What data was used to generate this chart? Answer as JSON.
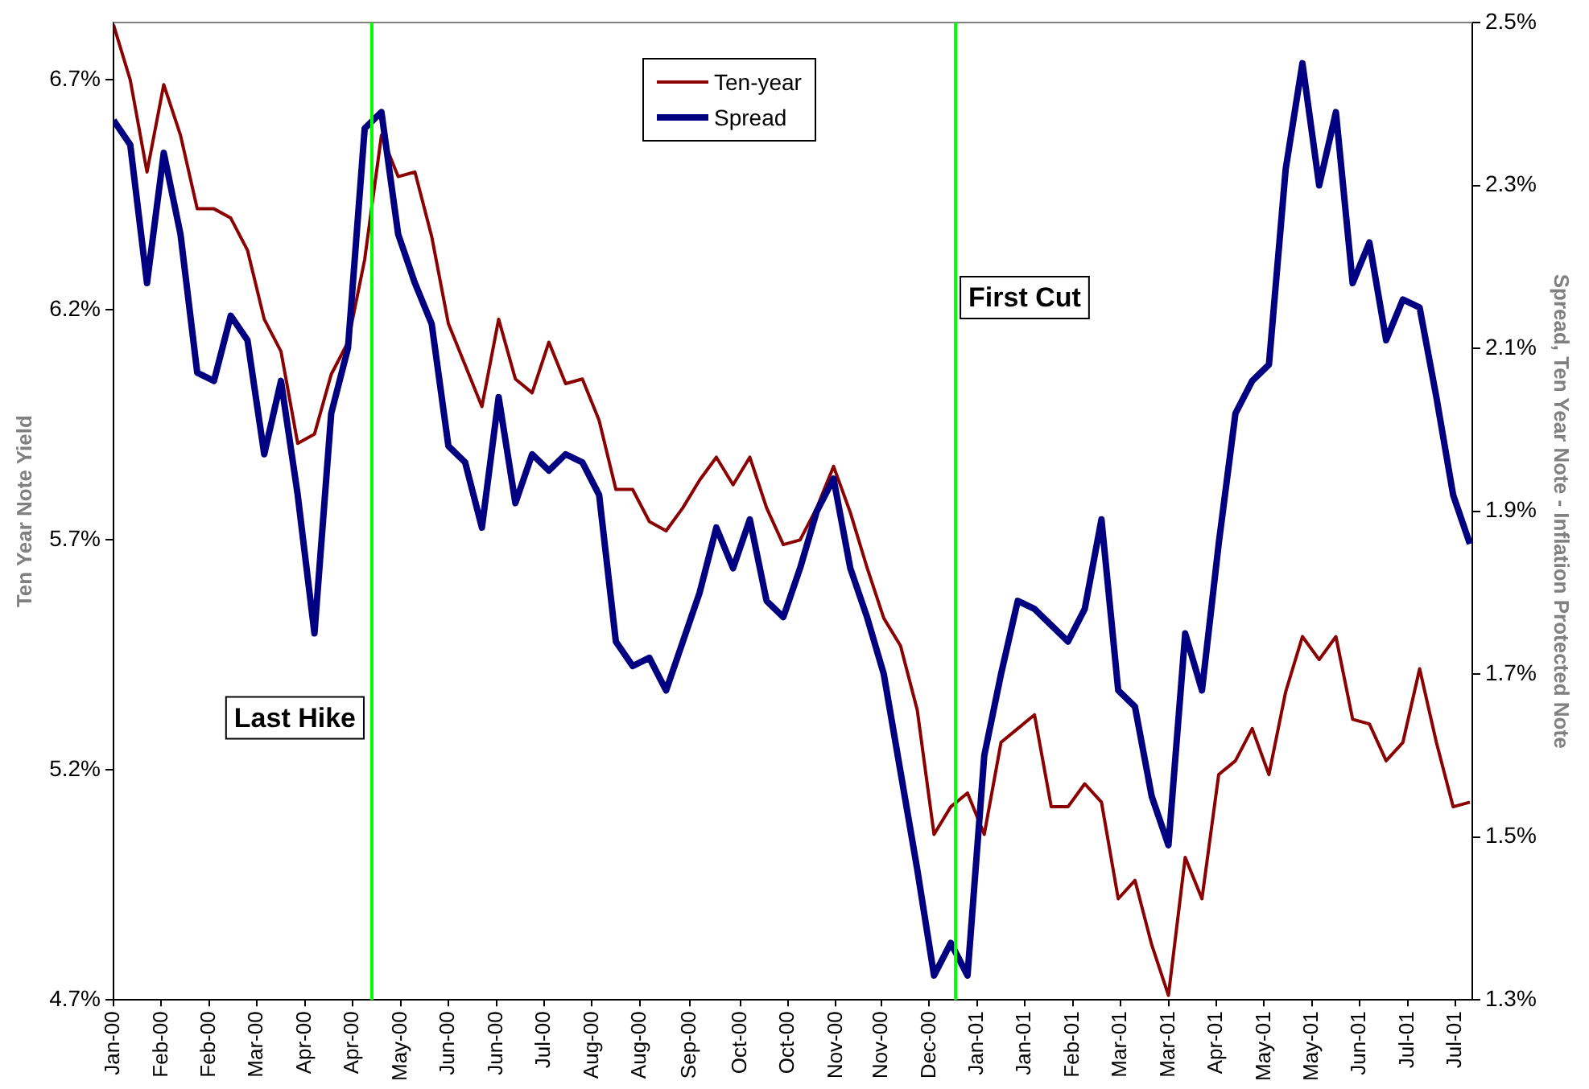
{
  "chart_data": {
    "type": "line",
    "ylabel": "Ten Year Note Yield",
    "y2label": "Spread, Ten Year Note - Inflation Protected Note",
    "x": [
      "2000-01-14",
      "2000-01-21",
      "2000-01-28",
      "2000-02-04",
      "2000-02-11",
      "2000-02-18",
      "2000-02-25",
      "2000-03-03",
      "2000-03-10",
      "2000-03-17",
      "2000-03-24",
      "2000-03-31",
      "2000-04-07",
      "2000-04-14",
      "2000-04-21",
      "2000-04-28",
      "2000-05-05",
      "2000-05-12",
      "2000-05-19",
      "2000-05-26",
      "2000-06-02",
      "2000-06-09",
      "2000-06-16",
      "2000-06-23",
      "2000-06-30",
      "2000-07-07",
      "2000-07-14",
      "2000-07-21",
      "2000-07-28",
      "2000-08-04",
      "2000-08-11",
      "2000-08-18",
      "2000-08-25",
      "2000-09-01",
      "2000-09-08",
      "2000-09-15",
      "2000-09-22",
      "2000-09-29",
      "2000-10-06",
      "2000-10-13",
      "2000-10-20",
      "2000-10-27",
      "2000-11-03",
      "2000-11-10",
      "2000-11-17",
      "2000-11-24",
      "2000-12-01",
      "2000-12-08",
      "2000-12-15",
      "2000-12-22",
      "2000-12-29",
      "2001-01-05",
      "2001-01-12",
      "2001-01-19",
      "2001-01-26",
      "2001-02-02",
      "2001-02-09",
      "2001-02-16",
      "2001-02-23",
      "2001-03-02",
      "2001-03-09",
      "2001-03-16",
      "2001-03-23",
      "2001-03-30",
      "2001-04-06",
      "2001-04-13",
      "2001-04-20",
      "2001-04-27",
      "2001-05-04",
      "2001-05-11",
      "2001-05-18",
      "2001-05-25",
      "2001-06-01",
      "2001-06-08",
      "2001-06-15",
      "2001-06-22",
      "2001-06-29",
      "2001-07-06",
      "2001-07-13",
      "2001-07-20",
      "2001-07-27",
      "2001-08-03"
    ],
    "series": [
      {
        "name": "Ten-year",
        "color": "#8b0000",
        "values": [
          6.82,
          6.7,
          6.5,
          6.69,
          6.58,
          6.42,
          6.42,
          6.4,
          6.33,
          6.18,
          6.11,
          5.91,
          5.93,
          6.06,
          6.13,
          6.31,
          6.58,
          6.49,
          6.5,
          6.36,
          6.17,
          6.08,
          5.99,
          6.18,
          6.05,
          6.02,
          6.13,
          6.04,
          6.05,
          5.96,
          5.81,
          5.81,
          5.74,
          5.72,
          5.77,
          5.83,
          5.88,
          5.82,
          5.88,
          5.77,
          5.69,
          5.7,
          5.77,
          5.86,
          5.76,
          5.64,
          5.53,
          5.47,
          5.33,
          5.06,
          5.12,
          5.15,
          5.06,
          5.26,
          5.29,
          5.32,
          5.12,
          5.12,
          5.17,
          5.13,
          4.92,
          4.96,
          4.82,
          4.71,
          5.01,
          4.92,
          5.19,
          5.22,
          5.29,
          5.19,
          5.37,
          5.49,
          5.44,
          5.49,
          5.31,
          5.3,
          5.22,
          5.26,
          5.42,
          5.26,
          5.12,
          5.13
        ]
      },
      {
        "name": "Spread",
        "color": "#000080",
        "axis": "y2",
        "values": [
          2.38,
          2.35,
          2.18,
          2.34,
          2.24,
          2.07,
          2.06,
          2.14,
          2.11,
          1.97,
          2.06,
          1.92,
          1.75,
          2.02,
          2.1,
          2.37,
          2.39,
          2.24,
          2.18,
          2.13,
          1.98,
          1.96,
          1.88,
          2.04,
          1.91,
          1.97,
          1.95,
          1.97,
          1.96,
          1.92,
          1.74,
          1.71,
          1.72,
          1.68,
          1.74,
          1.8,
          1.88,
          1.83,
          1.89,
          1.79,
          1.77,
          1.83,
          1.9,
          1.94,
          1.83,
          1.77,
          1.7,
          1.58,
          1.46,
          1.33,
          1.37,
          1.33,
          1.6,
          1.7,
          1.79,
          1.78,
          1.76,
          1.74,
          1.78,
          1.89,
          1.68,
          1.66,
          1.55,
          1.49,
          1.75,
          1.68,
          1.86,
          2.02,
          2.06,
          2.08,
          2.32,
          2.45,
          2.3,
          2.39,
          2.18,
          2.23,
          2.11,
          2.16,
          2.15,
          2.04,
          1.92,
          1.86
        ]
      }
    ],
    "xlim": [
      "2000-01-14",
      "2001-08-04"
    ],
    "xticks": [
      {
        "value": "2000-01-14",
        "label": "Jan-00"
      },
      {
        "value": "2000-02-03",
        "label": "Feb-00"
      },
      {
        "value": "2000-02-23",
        "label": "Feb-00"
      },
      {
        "value": "2000-03-14",
        "label": "Mar-00"
      },
      {
        "value": "2000-04-03",
        "label": "Apr-00"
      },
      {
        "value": "2000-04-23",
        "label": "Apr-00"
      },
      {
        "value": "2000-05-13",
        "label": "May-00"
      },
      {
        "value": "2000-06-02",
        "label": "Jun-00"
      },
      {
        "value": "2000-06-22",
        "label": "Jun-00"
      },
      {
        "value": "2000-07-12",
        "label": "Jul-00"
      },
      {
        "value": "2000-08-01",
        "label": "Aug-00"
      },
      {
        "value": "2000-08-21",
        "label": "Aug-00"
      },
      {
        "value": "2000-09-11",
        "label": "Sep-00"
      },
      {
        "value": "2000-10-02",
        "label": "Oct-00"
      },
      {
        "value": "2000-10-22",
        "label": "Oct-00"
      },
      {
        "value": "2000-11-11",
        "label": "Nov-00"
      },
      {
        "value": "2000-11-30",
        "label": "Nov-00"
      },
      {
        "value": "2000-12-20",
        "label": "Dec-00"
      },
      {
        "value": "2001-01-09",
        "label": "Jan-01"
      },
      {
        "value": "2001-01-29",
        "label": "Jan-01"
      },
      {
        "value": "2001-02-18",
        "label": "Feb-01"
      },
      {
        "value": "2001-03-10",
        "label": "Mar-01"
      },
      {
        "value": "2001-03-30",
        "label": "Mar-01"
      },
      {
        "value": "2001-04-19",
        "label": "Apr-01"
      },
      {
        "value": "2001-05-09",
        "label": "May-01"
      },
      {
        "value": "2001-05-29",
        "label": "May-01"
      },
      {
        "value": "2001-06-18",
        "label": "Jun-01"
      },
      {
        "value": "2001-07-08",
        "label": "Jul-01"
      },
      {
        "value": "2001-07-28",
        "label": "Jul-01"
      }
    ],
    "ylim": [
      4.7,
      6.825
    ],
    "yticks": [
      {
        "value": 4.7,
        "label": "4.7%"
      },
      {
        "value": 5.2,
        "label": "5.2%"
      },
      {
        "value": 5.7,
        "label": "5.7%"
      },
      {
        "value": 6.2,
        "label": "6.2%"
      },
      {
        "value": 6.7,
        "label": "6.7%"
      }
    ],
    "y2lim": [
      1.3,
      2.5
    ],
    "y2ticks": [
      {
        "value": 1.3,
        "label": "1.3%"
      },
      {
        "value": 1.5,
        "label": "1.5%"
      },
      {
        "value": 1.7,
        "label": "1.7%"
      },
      {
        "value": 1.9,
        "label": "1.9%"
      },
      {
        "value": 2.1,
        "label": "2.1%"
      },
      {
        "value": 2.3,
        "label": "2.3%"
      },
      {
        "value": 2.5,
        "label": "2.5%"
      }
    ],
    "ref_lines": [
      {
        "axis": "x",
        "value": "2000-05-01",
        "label": "Last Hike",
        "color": "#00ff00"
      },
      {
        "axis": "x",
        "value": "2000-12-31",
        "label": "First Cut",
        "color": "#00ff00"
      }
    ],
    "grid": false,
    "legend": "top",
    "marker": "none",
    "line_style": "solid"
  }
}
